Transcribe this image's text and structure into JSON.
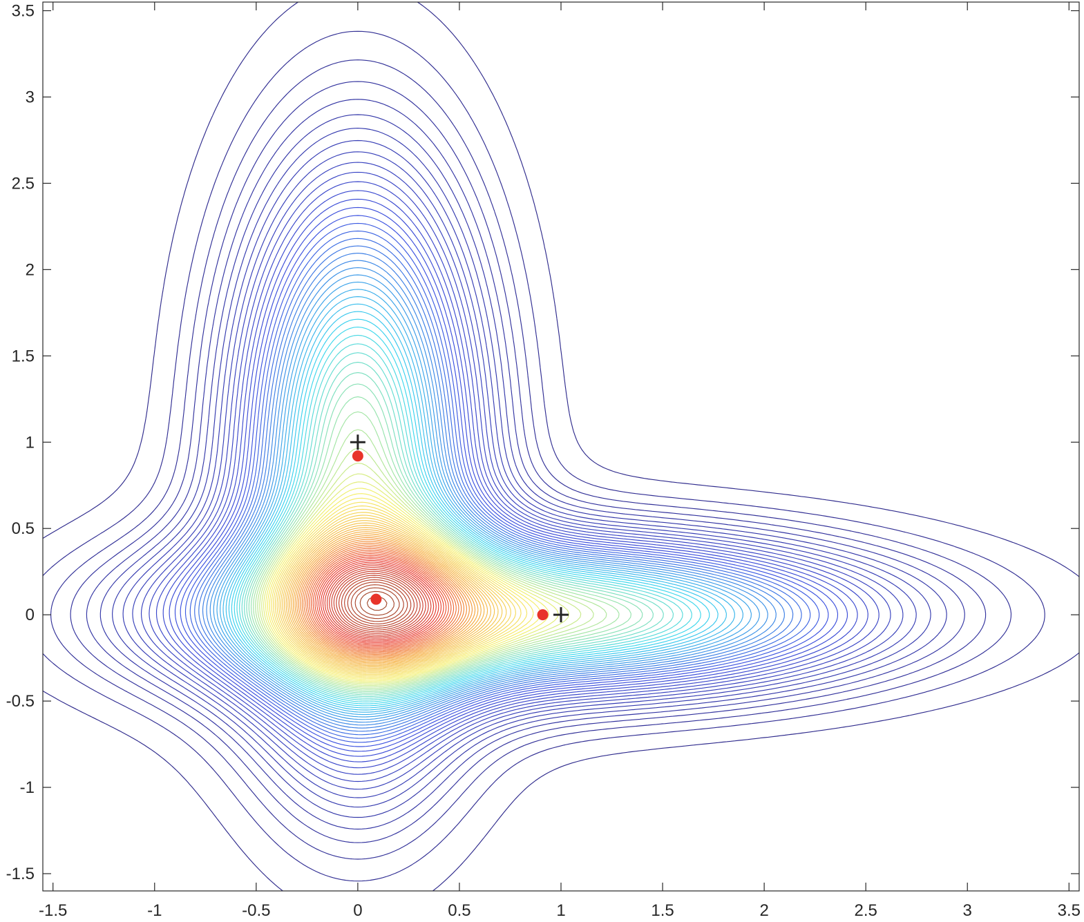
{
  "chart_data": {
    "type": "contour",
    "title": "",
    "xlabel": "",
    "ylabel": "",
    "xlim": [
      -1.55,
      3.55
    ],
    "ylim": [
      -1.6,
      3.55
    ],
    "x_ticks": [
      -1.5,
      -1,
      -0.5,
      0,
      0.5,
      1,
      1.5,
      2,
      2.5,
      3,
      3.5
    ],
    "x_tick_labels": [
      "-1.5",
      "-1",
      "-0.5",
      "0",
      "0.5",
      "1",
      "1.5",
      "2",
      "2.5",
      "3",
      "3.5"
    ],
    "y_ticks": [
      -1.5,
      -1,
      -0.5,
      0,
      0.5,
      1,
      1.5,
      2,
      2.5,
      3,
      3.5
    ],
    "y_tick_labels": [
      "-1.5",
      "-1",
      "-0.5",
      "0",
      "0.5",
      "1",
      "1.5",
      "2",
      "2.5",
      "3",
      "3.5"
    ],
    "grid": false,
    "box": true,
    "colormap": "jet",
    "colormap_stops": [
      "#2e2a8c",
      "#3b4fe0",
      "#38d6ef",
      "#f5f06a",
      "#f5a83a",
      "#e8342a",
      "#a0492c"
    ],
    "contour_levels": 90,
    "markers": [
      {
        "kind": "red-dot",
        "x": 0.0,
        "y": 0.92,
        "color": "#e8342a"
      },
      {
        "kind": "red-dot",
        "x": 0.09,
        "y": 0.09,
        "color": "#e8342a"
      },
      {
        "kind": "red-dot",
        "x": 0.91,
        "y": 0.0,
        "color": "#e8342a"
      },
      {
        "kind": "plus",
        "x": 0.0,
        "y": 1.0,
        "color": "#262626"
      },
      {
        "kind": "plus",
        "x": 1.0,
        "y": 0.0,
        "color": "#262626"
      }
    ]
  }
}
